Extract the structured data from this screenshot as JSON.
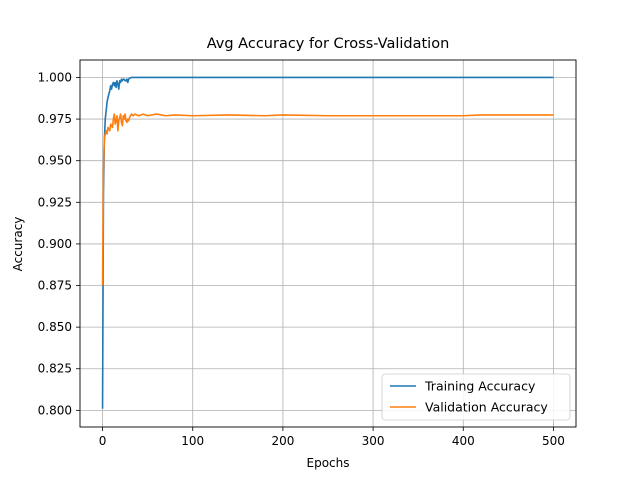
{
  "chart_data": {
    "type": "line",
    "title": "Avg Accuracy for Cross-Validation",
    "xlabel": "Epochs",
    "ylabel": "Accuracy",
    "xlim": [
      -25,
      525
    ],
    "ylim": [
      0.79,
      1.0105
    ],
    "xticks": [
      0,
      100,
      200,
      300,
      400,
      500
    ],
    "xtick_labels": [
      "0",
      "100",
      "200",
      "300",
      "400",
      "500"
    ],
    "yticks": [
      0.8,
      0.825,
      0.85,
      0.875,
      0.9,
      0.925,
      0.95,
      0.975,
      1.0
    ],
    "ytick_labels": [
      "0.800",
      "0.825",
      "0.850",
      "0.875",
      "0.900",
      "0.925",
      "0.950",
      "0.975",
      "1.000"
    ],
    "grid": true,
    "legend_position": "lower-right",
    "series": [
      {
        "name": "Training Accuracy",
        "color": "#1f77b4",
        "x": [
          0,
          1,
          2,
          3,
          4,
          5,
          6,
          7,
          8,
          9,
          10,
          11,
          12,
          13,
          14,
          15,
          16,
          17,
          18,
          19,
          20,
          21,
          22,
          23,
          24,
          25,
          26,
          27,
          28,
          29,
          30,
          32,
          34,
          36,
          40,
          50,
          100,
          200,
          300,
          400,
          500
        ],
        "y": [
          0.801,
          0.93,
          0.962,
          0.975,
          0.98,
          0.985,
          0.988,
          0.99,
          0.992,
          0.995,
          0.993,
          0.996,
          0.997,
          0.995,
          0.997,
          0.994,
          0.998,
          0.996,
          0.993,
          0.998,
          0.997,
          0.999,
          0.998,
          0.999,
          0.999,
          0.998,
          0.998,
          0.999,
          0.997,
          0.999,
          0.9995,
          1.0,
          1.0,
          1.0,
          1.0,
          1.0,
          1.0,
          1.0,
          1.0,
          1.0,
          1.0
        ]
      },
      {
        "name": "Validation Accuracy",
        "color": "#ff7f0e",
        "x": [
          0,
          1,
          2,
          3,
          4,
          5,
          6,
          7,
          8,
          9,
          10,
          11,
          12,
          13,
          14,
          15,
          16,
          17,
          18,
          19,
          20,
          21,
          22,
          23,
          24,
          25,
          26,
          27,
          28,
          29,
          30,
          32,
          34,
          36,
          40,
          45,
          50,
          60,
          70,
          80,
          100,
          140,
          180,
          200,
          250,
          300,
          350,
          400,
          420,
          450,
          500
        ],
        "y": [
          0.875,
          0.945,
          0.963,
          0.966,
          0.968,
          0.966,
          0.97,
          0.969,
          0.968,
          0.972,
          0.971,
          0.97,
          0.975,
          0.978,
          0.972,
          0.974,
          0.977,
          0.968,
          0.974,
          0.976,
          0.978,
          0.973,
          0.971,
          0.977,
          0.975,
          0.978,
          0.974,
          0.973,
          0.975,
          0.974,
          0.976,
          0.978,
          0.977,
          0.978,
          0.977,
          0.978,
          0.977,
          0.978,
          0.977,
          0.9775,
          0.977,
          0.9775,
          0.977,
          0.9775,
          0.977,
          0.977,
          0.977,
          0.977,
          0.9775,
          0.9775,
          0.9775
        ]
      }
    ]
  }
}
